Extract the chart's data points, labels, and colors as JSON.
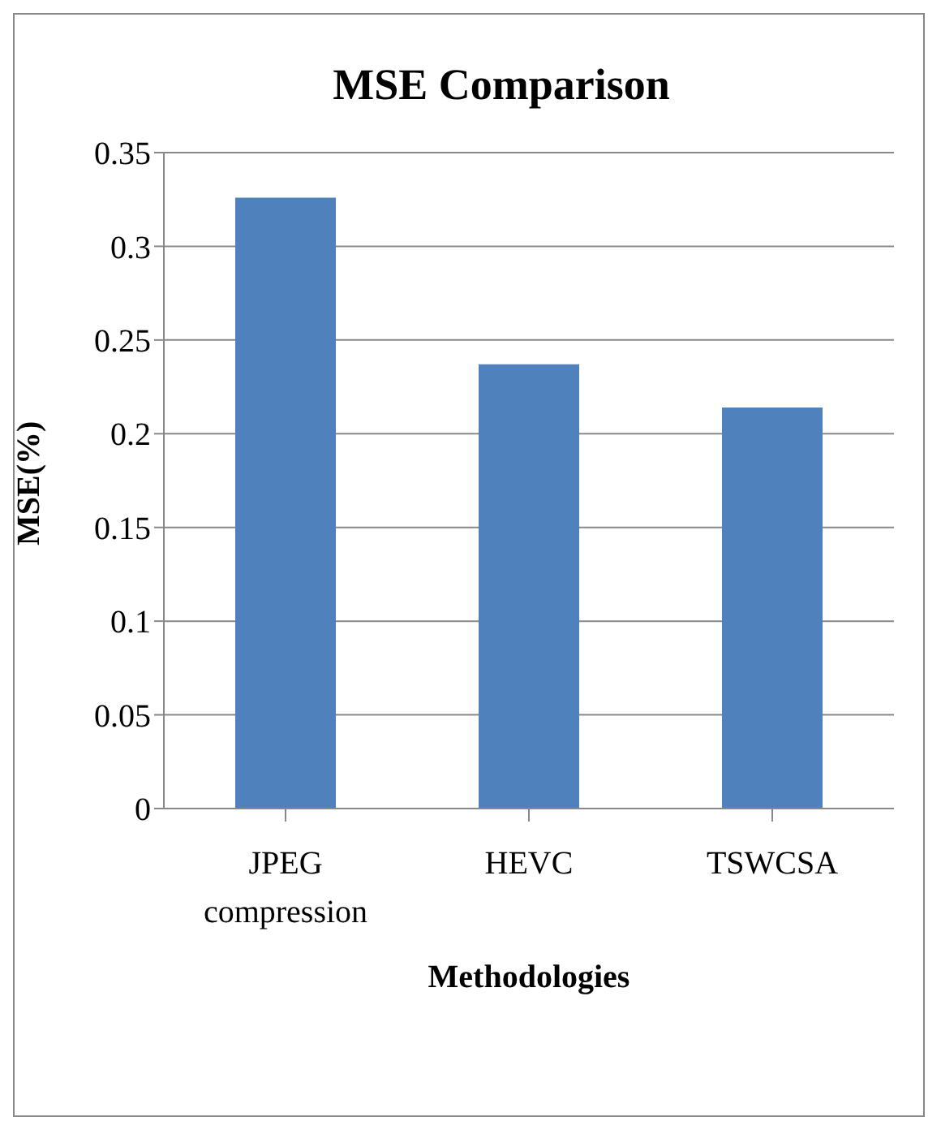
{
  "chart_data": {
    "type": "bar",
    "title": "MSE Comparison",
    "xlabel": "Methodologies",
    "ylabel": "MSE(%)",
    "categories": [
      "JPEG compression",
      "HEVC",
      "TSWCSA"
    ],
    "values": [
      0.326,
      0.237,
      0.214
    ],
    "color": "#4f81bd",
    "ylim": [
      0,
      0.35
    ],
    "yticks": [
      0,
      0.05,
      0.1,
      0.15,
      0.2,
      0.25,
      0.3,
      0.35
    ],
    "grid": "y",
    "legend": false
  }
}
